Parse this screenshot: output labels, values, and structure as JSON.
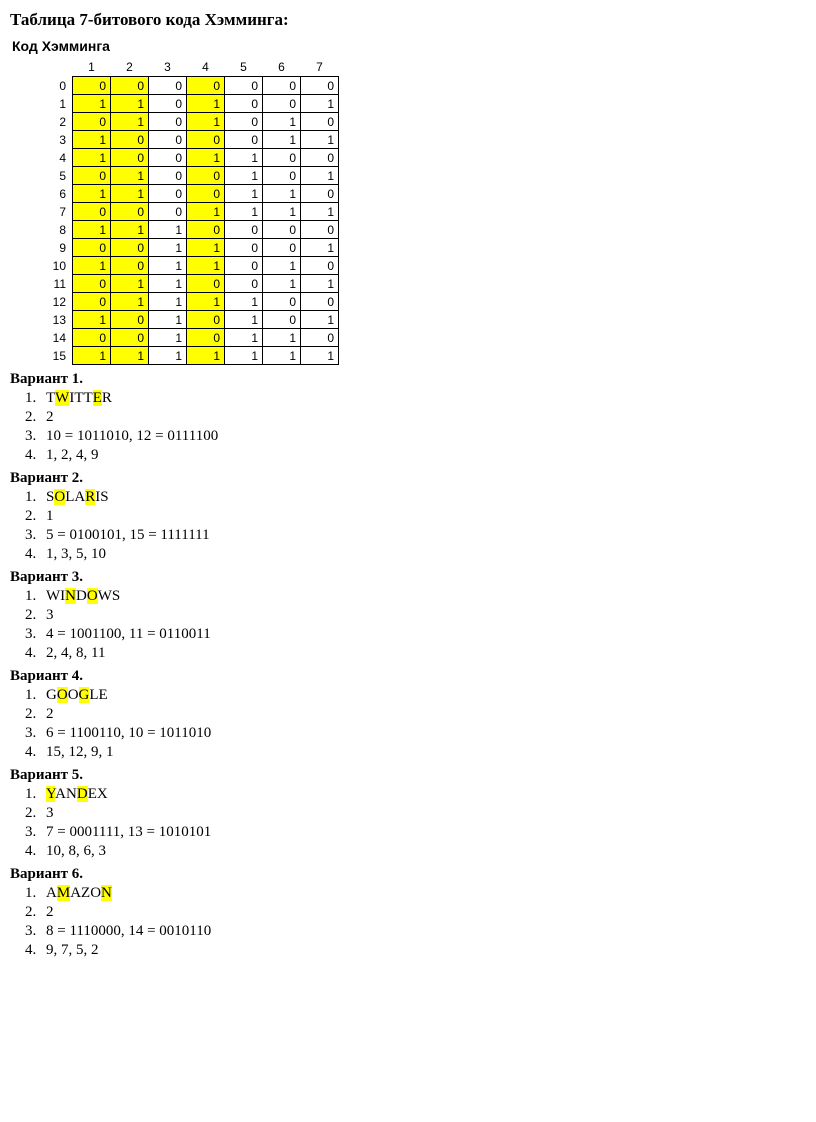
{
  "title": "Таблица 7-битового кода Хэмминга:",
  "subtitle": "Код Хэмминга",
  "table": {
    "col_headers": [
      "1",
      "2",
      "3",
      "4",
      "5",
      "6",
      "7"
    ],
    "row_headers": [
      "0",
      "1",
      "2",
      "3",
      "4",
      "5",
      "6",
      "7",
      "8",
      "9",
      "10",
      "11",
      "12",
      "13",
      "14",
      "15"
    ],
    "yellow_cols": [
      0,
      1,
      3
    ],
    "rows": [
      [
        "0",
        "0",
        "0",
        "0",
        "0",
        "0",
        "0"
      ],
      [
        "1",
        "1",
        "0",
        "1",
        "0",
        "0",
        "1"
      ],
      [
        "0",
        "1",
        "0",
        "1",
        "0",
        "1",
        "0"
      ],
      [
        "1",
        "0",
        "0",
        "0",
        "0",
        "1",
        "1"
      ],
      [
        "1",
        "0",
        "0",
        "1",
        "1",
        "0",
        "0"
      ],
      [
        "0",
        "1",
        "0",
        "0",
        "1",
        "0",
        "1"
      ],
      [
        "1",
        "1",
        "0",
        "0",
        "1",
        "1",
        "0"
      ],
      [
        "0",
        "0",
        "0",
        "1",
        "1",
        "1",
        "1"
      ],
      [
        "1",
        "1",
        "1",
        "0",
        "0",
        "0",
        "0"
      ],
      [
        "0",
        "0",
        "1",
        "1",
        "0",
        "0",
        "1"
      ],
      [
        "1",
        "0",
        "1",
        "1",
        "0",
        "1",
        "0"
      ],
      [
        "0",
        "1",
        "1",
        "0",
        "0",
        "1",
        "1"
      ],
      [
        "0",
        "1",
        "1",
        "1",
        "1",
        "0",
        "0"
      ],
      [
        "1",
        "0",
        "1",
        "0",
        "1",
        "0",
        "1"
      ],
      [
        "0",
        "0",
        "1",
        "0",
        "1",
        "1",
        "0"
      ],
      [
        "1",
        "1",
        "1",
        "1",
        "1",
        "1",
        "1"
      ]
    ]
  },
  "variants": [
    {
      "title": "Вариант 1.",
      "word": {
        "chars": [
          "T",
          "W",
          "I",
          "T",
          "T",
          "E",
          "R"
        ],
        "hl": [
          1,
          5
        ]
      },
      "i2": "2",
      "i3": "10 = 1011010, 12 = 0111100",
      "i4": "1, 2, 4, 9"
    },
    {
      "title": "Вариант 2.",
      "word": {
        "chars": [
          "S",
          "O",
          "L",
          "A",
          "R",
          "I",
          "S"
        ],
        "hl": [
          1,
          4
        ]
      },
      "i2": "1",
      "i3": "5 = 0100101, 15 = 1111111",
      "i4": " 1, 3, 5, 10"
    },
    {
      "title": "Вариант 3.",
      "word": {
        "chars": [
          "W",
          "I",
          "N",
          "D",
          "O",
          "W",
          "S"
        ],
        "hl": [
          2,
          4
        ]
      },
      "i2": "3",
      "i3": "4 = 1001100, 11 = 0110011",
      "i4": " 2, 4, 8, 11"
    },
    {
      "title": "Вариант 4.",
      "word": {
        "chars": [
          "G",
          "O",
          "O",
          "G",
          "L",
          "E"
        ],
        "hl": [
          1,
          3
        ]
      },
      "i2": "2",
      "i3": "6 = 1100110, 10 = 1011010",
      "i4": "15, 12, 9, 1"
    },
    {
      "title": "Вариант 5.",
      "word": {
        "chars": [
          "Y",
          "A",
          "N",
          "D",
          "E",
          "X"
        ],
        "hl": [
          0,
          3
        ]
      },
      "i2": "3",
      "i3": "7 = 0001111, 13 = 1010101",
      "i4": " 10, 8, 6, 3"
    },
    {
      "title": "Вариант 6.",
      "word": {
        "chars": [
          "A",
          "M",
          "A",
          "Z",
          "O",
          "N"
        ],
        "hl": [
          1,
          5
        ]
      },
      "i2": "2",
      "i3": "8 = 1110000, 14 = 0010110",
      "i4": "9, 7, 5, 2"
    }
  ]
}
